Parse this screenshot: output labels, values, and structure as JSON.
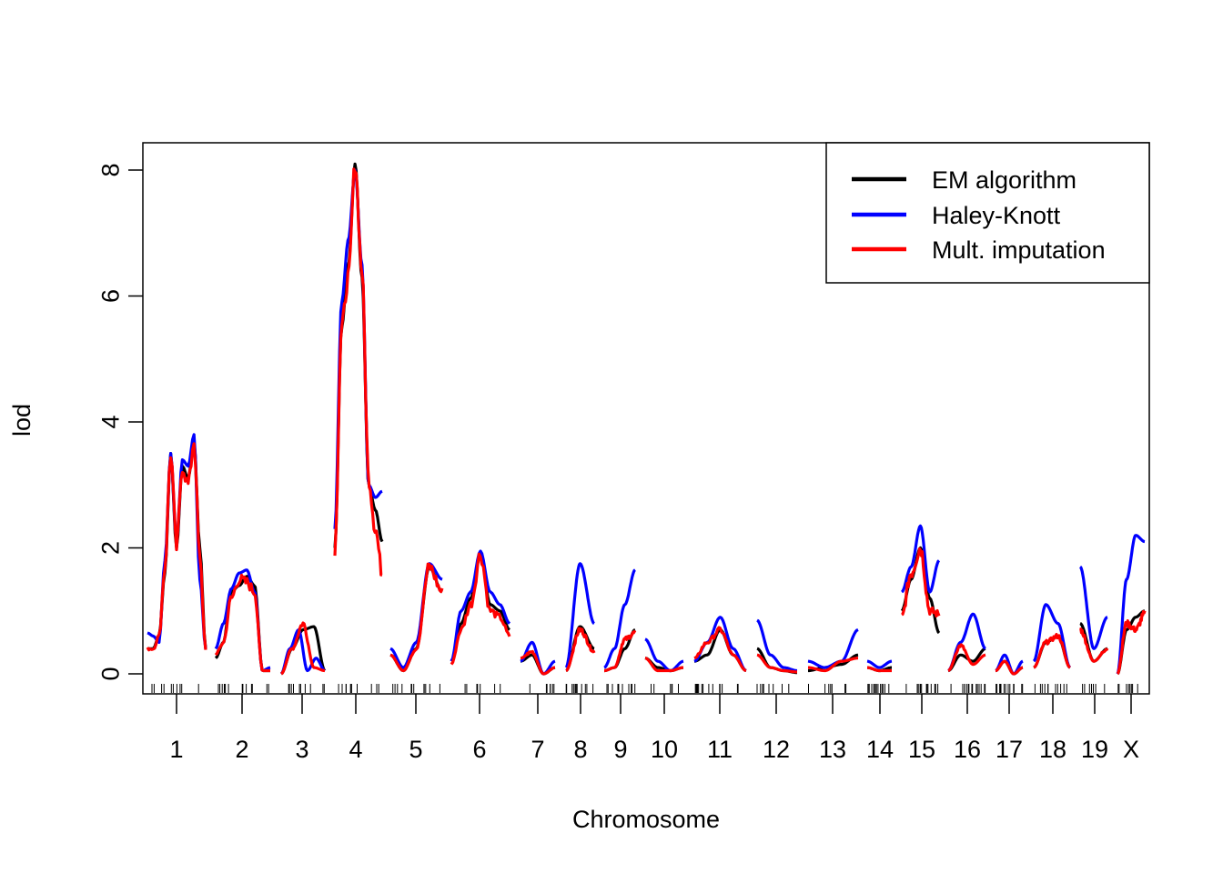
{
  "chart_data": {
    "type": "line",
    "xlabel": "Chromosome",
    "ylabel": "lod",
    "ylim": [
      0,
      8
    ],
    "y_ticks": [
      "0",
      "2",
      "4",
      "6",
      "8"
    ],
    "chromosomes": [
      "1",
      "2",
      "3",
      "4",
      "5",
      "6",
      "7",
      "8",
      "9",
      "10",
      "11",
      "12",
      "13",
      "14",
      "15",
      "16",
      "17",
      "18",
      "19",
      "X"
    ],
    "grid": false,
    "legend": {
      "position": "top-right"
    },
    "series": [
      {
        "name": "EM algorithm",
        "color": "#000000",
        "by_chromosome": [
          [
            0.4,
            0.4,
            0.6,
            1.6,
            3.5,
            2.0,
            3.3,
            3.1,
            3.7,
            2.0,
            0.4
          ],
          [
            0.25,
            0.5,
            1.3,
            1.4,
            1.55,
            1.4,
            0.05,
            0.05
          ],
          [
            0.0,
            0.4,
            0.7,
            0.75,
            0.05
          ],
          [
            2.0,
            5.5,
            6.5,
            8.1,
            6.3,
            3.0,
            2.6,
            2.1
          ],
          [
            0.3,
            0.05,
            0.4,
            1.7,
            1.3
          ],
          [
            0.2,
            0.8,
            1.2,
            1.9,
            1.1,
            1.0,
            0.7
          ],
          [
            0.2,
            0.3,
            0.0,
            0.1
          ],
          [
            0.05,
            0.75,
            0.4
          ],
          [
            0.05,
            0.1,
            0.4,
            0.7
          ],
          [
            0.25,
            0.1,
            0.05,
            0.1
          ],
          [
            0.2,
            0.3,
            0.7,
            0.3,
            0.05
          ],
          [
            0.4,
            0.1,
            0.05,
            0.02
          ],
          [
            0.05,
            0.1,
            0.15,
            0.3
          ],
          [
            0.1,
            0.05,
            0.1
          ],
          [
            1.0,
            1.5,
            2.0,
            1.2,
            0.65
          ],
          [
            0.05,
            0.3,
            0.2,
            0.4
          ],
          [
            0.05,
            0.2,
            0.0,
            0.1
          ],
          [
            0.1,
            0.5,
            0.6,
            0.1
          ],
          [
            0.8,
            0.2,
            0.4
          ],
          [
            0.0,
            0.7,
            0.9,
            1.0
          ]
        ]
      },
      {
        "name": "Haley-Knott",
        "color": "#0000ff",
        "by_chromosome": [
          [
            0.65,
            0.6,
            0.5,
            1.8,
            3.5,
            2.1,
            3.4,
            3.3,
            3.8,
            1.5,
            0.4
          ],
          [
            0.4,
            0.8,
            1.35,
            1.6,
            1.65,
            1.3,
            0.05,
            0.1
          ],
          [
            0.0,
            0.4,
            0.7,
            0.05,
            0.25,
            0.05
          ],
          [
            2.3,
            5.9,
            6.9,
            8.0,
            6.5,
            3.0,
            2.8,
            2.9
          ],
          [
            0.4,
            0.1,
            0.5,
            1.75,
            1.5
          ],
          [
            0.2,
            1.0,
            1.3,
            1.95,
            1.3,
            1.1,
            0.8
          ],
          [
            0.2,
            0.5,
            0.0,
            0.2
          ],
          [
            0.1,
            1.75,
            0.8
          ],
          [
            0.1,
            0.4,
            1.1,
            1.65
          ],
          [
            0.55,
            0.2,
            0.05,
            0.2
          ],
          [
            0.2,
            0.5,
            0.9,
            0.4,
            0.05
          ],
          [
            0.85,
            0.3,
            0.1,
            0.05
          ],
          [
            0.2,
            0.1,
            0.2,
            0.7
          ],
          [
            0.2,
            0.1,
            0.2
          ],
          [
            1.3,
            1.7,
            2.35,
            1.3,
            1.8
          ],
          [
            0.05,
            0.5,
            0.95,
            0.4
          ],
          [
            0.05,
            0.3,
            0.0,
            0.2
          ],
          [
            0.2,
            1.1,
            0.8,
            0.1
          ],
          [
            1.7,
            0.4,
            0.9
          ],
          [
            0.0,
            1.5,
            2.2,
            2.1
          ]
        ]
      },
      {
        "name": "Mult. imputation",
        "color": "#ff0000",
        "by_chromosome": [
          [
            0.4,
            0.4,
            0.6,
            1.7,
            3.5,
            2.0,
            3.3,
            3.0,
            3.7,
            1.8,
            0.4
          ],
          [
            0.3,
            0.5,
            1.2,
            1.5,
            1.45,
            1.3,
            0.05,
            0.05
          ],
          [
            0.0,
            0.4,
            0.8,
            0.1,
            0.05
          ],
          [
            2.0,
            5.5,
            6.3,
            8.1,
            6.4,
            3.1,
            2.3,
            1.6
          ],
          [
            0.3,
            0.05,
            0.4,
            1.7,
            1.3
          ],
          [
            0.15,
            0.7,
            1.1,
            1.9,
            1.0,
            0.9,
            0.6
          ],
          [
            0.25,
            0.35,
            0.0,
            0.1
          ],
          [
            0.05,
            0.7,
            0.35
          ],
          [
            0.05,
            0.1,
            0.55,
            0.65
          ],
          [
            0.25,
            0.05,
            0.05,
            0.1
          ],
          [
            0.25,
            0.5,
            0.7,
            0.3,
            0.05
          ],
          [
            0.3,
            0.1,
            0.05,
            0.03
          ],
          [
            0.1,
            0.05,
            0.2,
            0.25
          ],
          [
            0.1,
            0.05,
            0.05
          ],
          [
            0.9,
            1.6,
            2.0,
            1.0,
            0.95
          ],
          [
            0.05,
            0.45,
            0.15,
            0.3
          ],
          [
            0.05,
            0.2,
            0.0,
            0.1
          ],
          [
            0.1,
            0.5,
            0.6,
            0.1
          ],
          [
            0.7,
            0.2,
            0.4
          ],
          [
            0.0,
            0.8,
            0.7,
            0.95
          ]
        ]
      }
    ]
  }
}
